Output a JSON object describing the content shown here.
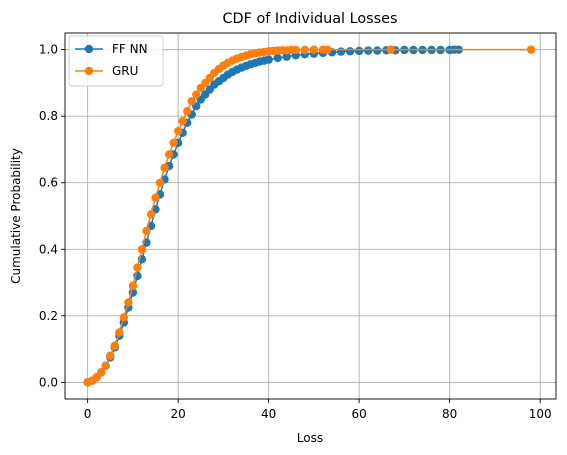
{
  "chart_data": {
    "type": "line",
    "title": "CDF of Individual Losses",
    "xlabel": "Loss",
    "ylabel": "Cumulative Probability",
    "xlim": [
      -5,
      103.5
    ],
    "ylim": [
      -0.05,
      1.05
    ],
    "xticks": [
      "0",
      "20",
      "40",
      "60",
      "80",
      "100"
    ],
    "yticks": [
      "0.0",
      "0.2",
      "0.4",
      "0.6",
      "0.8",
      "1.0"
    ],
    "grid": true,
    "legend_position": "top-left",
    "series": [
      {
        "name": "FF NN",
        "color": "#1f77b4",
        "marker": "circle",
        "x": [
          0,
          1,
          2,
          3,
          4,
          5,
          6,
          7,
          8,
          9,
          10,
          11,
          12,
          13,
          14,
          15,
          16,
          17,
          18,
          19,
          20,
          21,
          22,
          23,
          24,
          25,
          26,
          27,
          28,
          29,
          30,
          31,
          32,
          33,
          34,
          35,
          36,
          37,
          38,
          39,
          40,
          42,
          44,
          46,
          48,
          50,
          52,
          54,
          56,
          58,
          60,
          62,
          64,
          66,
          68,
          70,
          72,
          74,
          76,
          78,
          80,
          81,
          82
        ],
        "y": [
          0.0,
          0.005,
          0.015,
          0.03,
          0.05,
          0.075,
          0.105,
          0.14,
          0.18,
          0.225,
          0.27,
          0.32,
          0.37,
          0.42,
          0.47,
          0.52,
          0.565,
          0.61,
          0.65,
          0.685,
          0.72,
          0.75,
          0.78,
          0.805,
          0.83,
          0.85,
          0.865,
          0.88,
          0.895,
          0.905,
          0.915,
          0.925,
          0.933,
          0.94,
          0.946,
          0.951,
          0.956,
          0.96,
          0.964,
          0.967,
          0.97,
          0.975,
          0.979,
          0.983,
          0.986,
          0.988,
          0.99,
          0.992,
          0.994,
          0.995,
          0.996,
          0.997,
          0.997,
          0.998,
          0.998,
          0.999,
          0.999,
          0.999,
          0.999,
          0.999,
          0.999,
          1.0,
          1.0
        ]
      },
      {
        "name": "GRU",
        "color": "#ff7f0e",
        "marker": "circle",
        "x": [
          0,
          1,
          2,
          3,
          4,
          5,
          6,
          7,
          8,
          9,
          10,
          11,
          12,
          13,
          14,
          15,
          16,
          17,
          18,
          19,
          20,
          21,
          22,
          23,
          24,
          25,
          26,
          27,
          28,
          29,
          30,
          31,
          32,
          33,
          34,
          35,
          36,
          37,
          38,
          39,
          40,
          41,
          42,
          43,
          44,
          45,
          46,
          48,
          50,
          52,
          53,
          67,
          98
        ],
        "y": [
          0.0,
          0.005,
          0.015,
          0.03,
          0.05,
          0.08,
          0.11,
          0.15,
          0.195,
          0.24,
          0.29,
          0.345,
          0.4,
          0.455,
          0.505,
          0.555,
          0.6,
          0.645,
          0.685,
          0.72,
          0.755,
          0.785,
          0.815,
          0.845,
          0.865,
          0.885,
          0.9,
          0.915,
          0.93,
          0.942,
          0.952,
          0.96,
          0.967,
          0.973,
          0.978,
          0.982,
          0.986,
          0.989,
          0.991,
          0.993,
          0.995,
          0.996,
          0.997,
          0.998,
          0.998,
          0.999,
          0.999,
          0.999,
          1.0,
          1.0,
          1.0,
          1.0,
          1.0
        ]
      }
    ]
  }
}
